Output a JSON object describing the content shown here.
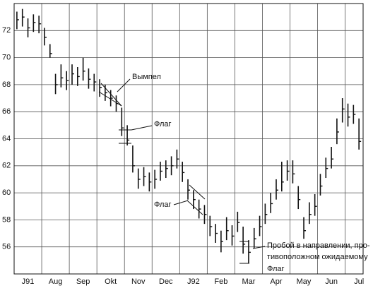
{
  "chart_data": {
    "type": "ohlc",
    "x": [
      0.1,
      0.3,
      0.5,
      0.7,
      0.9,
      1.1,
      1.3,
      1.5,
      1.7,
      1.9,
      2.1,
      2.3,
      2.5,
      2.7,
      2.9,
      3.1,
      3.3,
      3.5,
      3.7,
      3.9,
      4.1,
      4.3,
      4.5,
      4.7,
      4.9,
      5.1,
      5.3,
      5.5,
      5.7,
      5.9,
      6.1,
      6.3,
      6.5,
      6.7,
      6.9,
      7.1,
      7.3,
      7.5,
      7.7,
      7.9,
      8.1,
      8.3,
      8.5,
      8.7,
      8.9,
      9.1,
      9.3,
      9.5,
      9.7,
      9.9,
      10.1,
      10.3,
      10.5,
      10.7,
      10.9,
      11.1,
      11.3,
      11.5,
      11.7,
      11.9,
      12.1,
      12.3,
      12.5
    ],
    "high": [
      73.4,
      73.6,
      72.9,
      73.2,
      73.1,
      72.2,
      71.0,
      68.8,
      69.5,
      69.0,
      69.5,
      69.3,
      70.0,
      69.2,
      68.8,
      68.4,
      68.0,
      67.6,
      67.2,
      66.3,
      65.0,
      63.5,
      61.8,
      61.9,
      61.5,
      61.7,
      62.3,
      62.4,
      62.7,
      63.2,
      62.3,
      61.0,
      60.2,
      59.5,
      59.1,
      58.3,
      57.7,
      57.2,
      58.2,
      57.6,
      58.6,
      57.5,
      56.5,
      57.4,
      58.3,
      59.2,
      60.0,
      61.0,
      62.3,
      62.4,
      62.4,
      60.5,
      58.2,
      59.3,
      59.9,
      61.4,
      62.6,
      63.4,
      65.5,
      67.0,
      66.6,
      66.5,
      65.5
    ],
    "low": [
      72.1,
      72.3,
      71.5,
      71.9,
      71.8,
      70.9,
      70.0,
      67.3,
      67.8,
      67.6,
      68.0,
      67.9,
      68.3,
      67.7,
      67.5,
      67.1,
      66.8,
      66.4,
      66.0,
      64.2,
      63.5,
      61.5,
      60.3,
      60.5,
      60.1,
      60.3,
      60.9,
      61.1,
      61.3,
      61.8,
      60.8,
      59.5,
      58.8,
      58.1,
      57.7,
      56.8,
      56.3,
      55.6,
      56.5,
      56.1,
      57.1,
      55.5,
      54.8,
      55.9,
      56.8,
      57.7,
      58.5,
      59.5,
      60.1,
      60.9,
      60.7,
      58.8,
      56.6,
      57.7,
      58.3,
      59.8,
      61.1,
      61.8,
      63.6,
      65.2,
      64.9,
      65.1,
      63.2
    ],
    "close": [
      72.8,
      73.0,
      72.2,
      72.6,
      72.5,
      71.5,
      70.3,
      68.0,
      68.5,
      68.3,
      68.8,
      68.6,
      69.0,
      68.4,
      68.2,
      67.8,
      67.4,
      67.0,
      66.6,
      64.8,
      63.9,
      62.0,
      61.0,
      61.2,
      60.8,
      61.0,
      61.6,
      61.8,
      62.0,
      62.5,
      61.5,
      60.2,
      59.5,
      58.8,
      58.4,
      57.5,
      57.0,
      56.4,
      57.2,
      56.8,
      57.8,
      56.2,
      55.6,
      56.6,
      57.5,
      58.4,
      59.2,
      60.2,
      60.8,
      61.6,
      61.4,
      59.5,
      57.2,
      58.4,
      59.0,
      60.5,
      61.8,
      62.5,
      64.5,
      66.2,
      65.6,
      65.8,
      63.8
    ],
    "xlim": [
      0,
      12.65
    ],
    "xticks": [
      {
        "value": 0.5,
        "label": "J91"
      },
      {
        "value": 1.5,
        "label": "Aug"
      },
      {
        "value": 2.5,
        "label": "Sep"
      },
      {
        "value": 3.5,
        "label": "Okt"
      },
      {
        "value": 4.5,
        "label": "Nov"
      },
      {
        "value": 5.5,
        "label": "Dec"
      },
      {
        "value": 6.5,
        "label": "J92"
      },
      {
        "value": 7.5,
        "label": "Feb"
      },
      {
        "value": 8.5,
        "label": "Mar"
      },
      {
        "value": 9.5,
        "label": "Apr"
      },
      {
        "value": 10.5,
        "label": "May"
      },
      {
        "value": 11.5,
        "label": "Jun"
      },
      {
        "value": 12.5,
        "label": "Jul"
      }
    ],
    "ylim": [
      54,
      74
    ],
    "yticks": [
      56,
      58,
      60,
      62,
      64,
      66,
      68,
      70,
      72
    ],
    "grid": true,
    "color": "#111111",
    "annotations": [
      "Вымпел",
      "Флаг",
      "Флаг",
      "Пробой в направлении, про-",
      "тивоположном ожидаемому",
      "Флаг"
    ]
  }
}
